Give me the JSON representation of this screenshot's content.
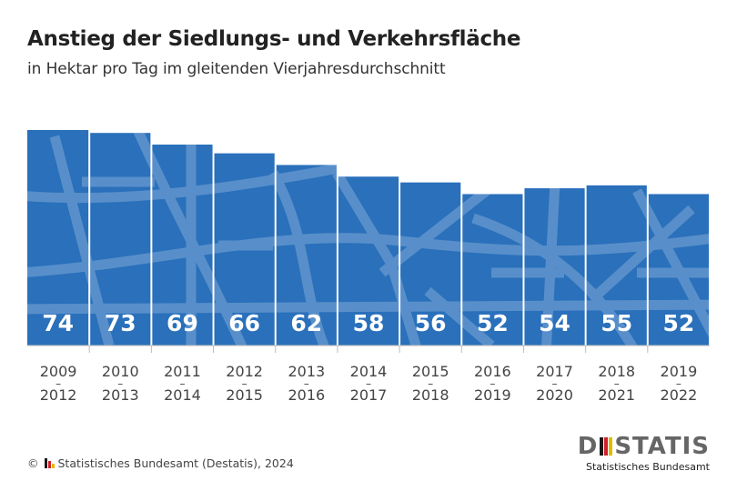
{
  "header": {
    "title": "Anstieg der Siedlungs- und Verkehrsfläche",
    "subtitle": "in Hektar pro Tag im gleitenden Vierjahresdurchschnitt"
  },
  "chart_data": {
    "type": "bar",
    "title": "Anstieg der Siedlungs- und Verkehrsfläche",
    "subtitle": "in Hektar pro Tag im gleitenden Vierjahresdurchschnitt",
    "categories": [
      [
        "2009",
        "2012"
      ],
      [
        "2010",
        "2013"
      ],
      [
        "2011",
        "2014"
      ],
      [
        "2012",
        "2015"
      ],
      [
        "2013",
        "2016"
      ],
      [
        "2014",
        "2017"
      ],
      [
        "2015",
        "2018"
      ],
      [
        "2016",
        "2019"
      ],
      [
        "2017",
        "2020"
      ],
      [
        "2018",
        "2021"
      ],
      [
        "2019",
        "2022"
      ]
    ],
    "category_separator": "–",
    "values": [
      74,
      73,
      69,
      66,
      62,
      58,
      56,
      52,
      54,
      55,
      52
    ],
    "ylim": [
      0,
      74
    ],
    "xlabel": "",
    "ylabel": "",
    "bar_color": "#2a70bb",
    "label_color": "#ffffff"
  },
  "footer": {
    "copyright_symbol": "©",
    "source": "Statistisches Bundesamt (Destatis), 2024"
  },
  "logo": {
    "word_left": "D",
    "word_right": "STATIS",
    "subline": "Statistisches Bundesamt",
    "flag_colors": [
      "#1a1a1a",
      "#d0202a",
      "#e5b900"
    ]
  }
}
